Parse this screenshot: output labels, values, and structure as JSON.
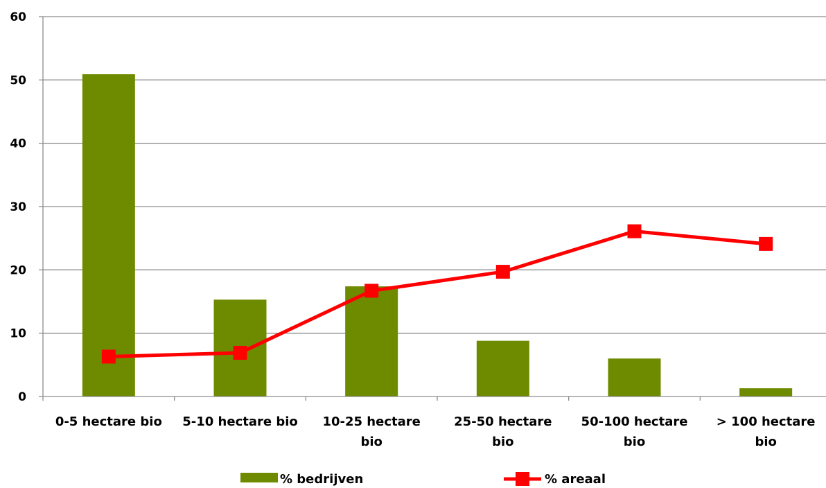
{
  "chart_data": {
    "type": "bar",
    "categories": [
      [
        "0-5 hectare bio"
      ],
      [
        "5-10 hectare bio"
      ],
      [
        "10-25 hectare",
        "bio"
      ],
      [
        "25-50 hectare",
        "bio"
      ],
      [
        "50-100 hectare",
        "bio"
      ],
      [
        "> 100 hectare",
        "bio"
      ]
    ],
    "series": [
      {
        "name": "% bedrijven",
        "kind": "bar",
        "color": "#6e8b00",
        "values": [
          50.9,
          15.3,
          17.4,
          8.8,
          6.0,
          1.3
        ]
      },
      {
        "name": "% areaal",
        "kind": "line",
        "color": "#ff0000",
        "values": [
          6.3,
          6.9,
          16.7,
          19.7,
          26.1,
          24.1
        ]
      }
    ],
    "y_ticks": [
      "0",
      "10",
      "20",
      "30",
      "40",
      "50",
      "60"
    ],
    "ylim": [
      0,
      60
    ],
    "grid": true,
    "legend_position": "bottom"
  }
}
